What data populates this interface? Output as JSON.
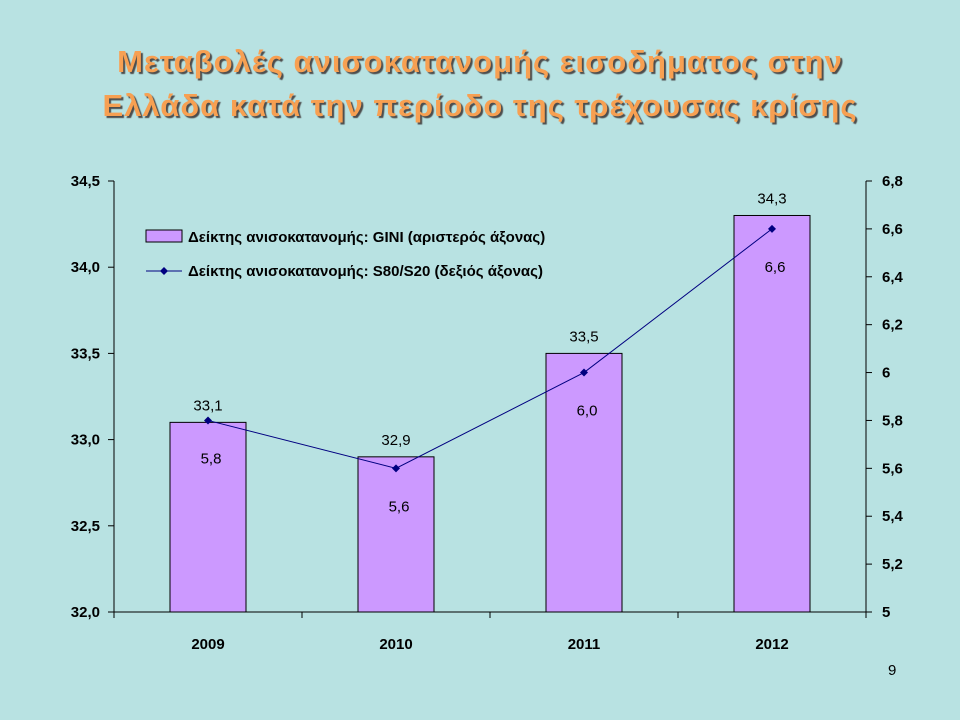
{
  "title": {
    "line1": "Μεταβολές ανισοκατανομής εισοδήματος στην",
    "line2": "Ελλάδα κατά την περίοδο της τρέχουσας κρίσης"
  },
  "slide_number": "9",
  "colors": {
    "bar_fill": "#cc99ff",
    "line": "#000080",
    "title": "#f7a052",
    "background": "#b8e2e2"
  },
  "chart_data": {
    "type": "bar",
    "categories": [
      "2009",
      "2010",
      "2011",
      "2012"
    ],
    "series": [
      {
        "name": "Δείκτης ανισοκατανομής: GINI (αριστερός άξονας)",
        "type": "bar",
        "axis": "left",
        "values": [
          33.1,
          32.9,
          33.5,
          34.3
        ],
        "labels": [
          "33,1",
          "32,9",
          "33,5",
          "34,3"
        ]
      },
      {
        "name": "Δείκτης ανισοκατανομής: S80/S20 (δεξιός άξονας)",
        "type": "line",
        "axis": "right",
        "values": [
          5.8,
          5.6,
          6.0,
          6.6
        ],
        "labels": [
          "5,8",
          "5,6",
          "6,0",
          "6,6"
        ]
      }
    ],
    "y_left": {
      "range": [
        32.0,
        34.5
      ],
      "ticks": [
        32.0,
        32.5,
        33.0,
        33.5,
        34.0,
        34.5
      ],
      "tick_labels": [
        "32,0",
        "32,5",
        "33,0",
        "33,5",
        "34,0",
        "34,5"
      ]
    },
    "y_right": {
      "range": [
        5,
        6.8
      ],
      "ticks": [
        5,
        5.2,
        5.4,
        5.6,
        5.8,
        6,
        6.2,
        6.4,
        6.6,
        6.8
      ],
      "tick_labels": [
        "5",
        "5,2",
        "5,4",
        "5,6",
        "5,8",
        "6",
        "6,2",
        "6,4",
        "6,6",
        "6,8"
      ]
    },
    "legend_position": "top-left",
    "grid": false
  }
}
